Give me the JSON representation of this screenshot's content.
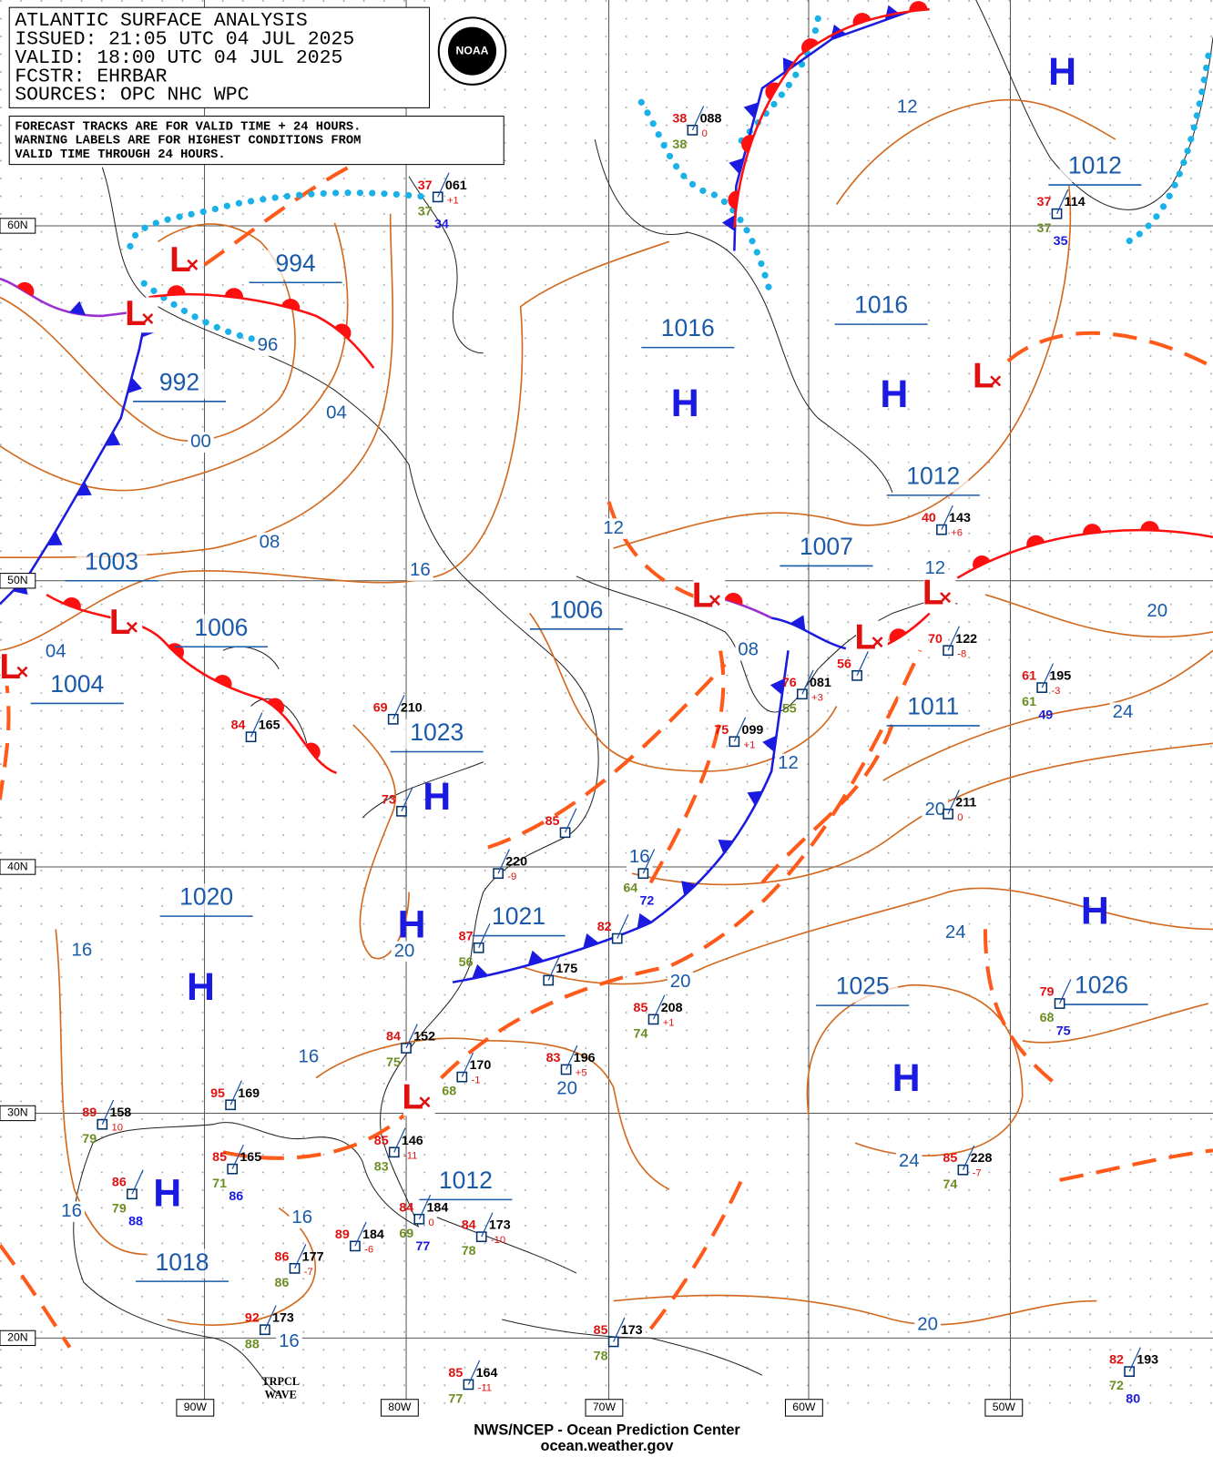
{
  "header": {
    "lines": [
      "ATLANTIC SURFACE ANALYSIS",
      "ISSUED: 21:05 UTC 04 JUL 2025",
      "VALID:  18:00 UTC 04 JUL 2025",
      "FCSTR:  EHRBAR",
      "SOURCES: OPC NHC WPC"
    ],
    "logo": "NOAA"
  },
  "note": [
    "FORECAST TRACKS ARE FOR VALID TIME + 24 HOURS.",
    "WARNING LABELS ARE FOR HIGHEST CONDITIONS FROM",
    "VALID TIME THROUGH 24 HOURS."
  ],
  "latitudes": [
    "60N",
    "50N",
    "40N",
    "30N",
    "20N"
  ],
  "longitudes": [
    "90W",
    "80W",
    "70W",
    "60W",
    "50W"
  ],
  "pressure_labels": [
    "994",
    "992",
    "1016",
    "1016",
    "1012",
    "1012",
    "1007",
    "1003",
    "1006",
    "1006",
    "1004",
    "1011",
    "1023",
    "1021",
    "1020",
    "1025",
    "1026",
    "1012",
    "1018"
  ],
  "highs": [
    "H",
    "H",
    "H",
    "H",
    "H",
    "H",
    "H",
    "H",
    "H"
  ],
  "lows": [
    "L",
    "L",
    "L",
    "L",
    "L",
    "L",
    "L",
    "L",
    "L"
  ],
  "isobar_labels": [
    "96",
    "04",
    "00",
    "08",
    "16",
    "12",
    "12",
    "12",
    "08",
    "12",
    "20",
    "24",
    "20",
    "16",
    "20",
    "16",
    "20",
    "24",
    "16",
    "20",
    "24",
    "16",
    "16",
    "16",
    "20",
    "04"
  ],
  "stations": [
    {
      "temp": "38",
      "pressure": "088",
      "tendency": "0",
      "dew": "38"
    },
    {
      "temp": "37",
      "pressure": "114",
      "dew": "37",
      "extra": "35"
    },
    {
      "temp": "37",
      "pressure": "061",
      "tendency": "+1",
      "dew": "37",
      "extra": "34"
    },
    {
      "temp": "40",
      "pressure": "143",
      "tendency": "+6"
    },
    {
      "temp": "70",
      "pressure": "122",
      "tendency": "-8"
    },
    {
      "temp": "56"
    },
    {
      "temp": "61",
      "pressure": "195",
      "tendency": "-3",
      "dew": "61",
      "extra": "49"
    },
    {
      "temp": "76",
      "pressure": "081",
      "tendency": "+3",
      "dew": "55"
    },
    {
      "temp": "75",
      "pressure": "099",
      "tendency": "+1"
    },
    {
      "pressure": "211",
      "tendency": "0"
    },
    {
      "temp": "69",
      "pressure": "210"
    },
    {
      "temp": "84",
      "pressure": "165"
    },
    {
      "temp": "73"
    },
    {
      "temp": "85"
    },
    {
      "pressure": "220",
      "tendency": "-9"
    },
    {
      "dew": "64",
      "extra": "72"
    },
    {
      "temp": "82"
    },
    {
      "temp": "87",
      "dew": "56"
    },
    {
      "pressure": "175"
    },
    {
      "temp": "85",
      "pressure": "208",
      "tendency": "+1",
      "dew": "74"
    },
    {
      "temp": "84",
      "pressure": "152",
      "dew": "75"
    },
    {
      "pressure": "170",
      "tendency": "-1",
      "dew": "68"
    },
    {
      "temp": "83",
      "pressure": "196",
      "tendency": "+5"
    },
    {
      "temp": "79",
      "dew": "68",
      "extra": "75"
    },
    {
      "temp": "95",
      "pressure": "169"
    },
    {
      "temp": "89",
      "pressure": "158",
      "tendency": "10",
      "dew": "79"
    },
    {
      "temp": "85",
      "pressure": "165",
      "dew": "71",
      "extra": "86"
    },
    {
      "temp": "85",
      "pressure": "146",
      "tendency": "-11",
      "dew": "83"
    },
    {
      "temp": "86",
      "dew": "79",
      "extra": "88"
    },
    {
      "temp": "85",
      "pressure": "228",
      "tendency": "-7",
      "dew": "74"
    },
    {
      "temp": "84",
      "pressure": "184",
      "tendency": "0",
      "dew": "69",
      "extra": "77"
    },
    {
      "temp": "84",
      "pressure": "173",
      "tendency": "-10",
      "dew": "78"
    },
    {
      "temp": "89",
      "pressure": "184",
      "tendency": "-6"
    },
    {
      "temp": "86",
      "pressure": "177",
      "tendency": "-7",
      "dew": "86"
    },
    {
      "temp": "92",
      "pressure": "173",
      "dew": "88"
    },
    {
      "temp": "85",
      "pressure": "173",
      "dew": "78"
    },
    {
      "temp": "85",
      "pressure": "164",
      "tendency": "-11",
      "dew": "77"
    },
    {
      "temp": "82",
      "pressure": "193",
      "dew": "72",
      "extra": "80"
    }
  ],
  "tropical_wave": [
    "TRPCL",
    "WAVE"
  ],
  "footer": [
    "NWS/NCEP - Ocean Prediction Center",
    "ocean.weather.gov"
  ]
}
